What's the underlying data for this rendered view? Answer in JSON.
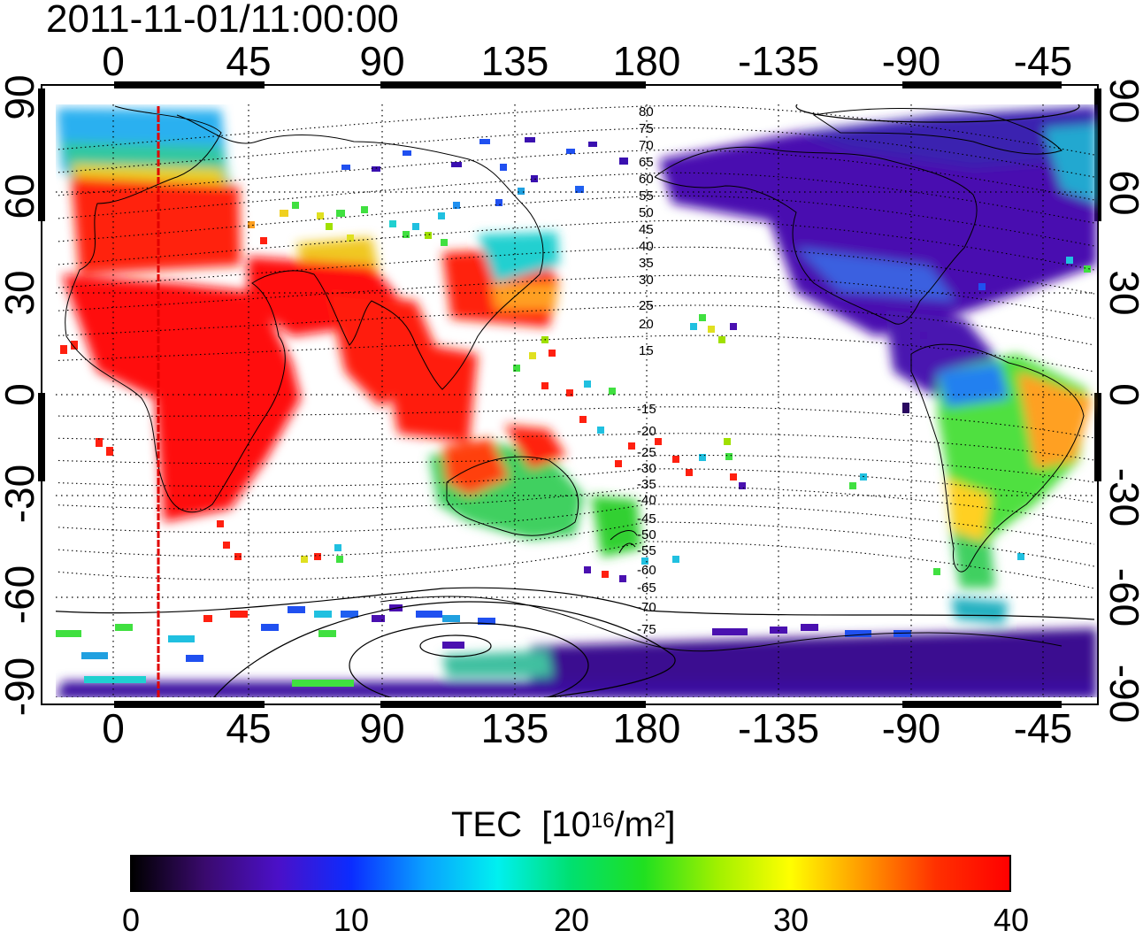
{
  "title": "2011-11-01/11:00:00",
  "axes": {
    "top_ticks": [
      "0",
      "45",
      "90",
      "135",
      "180",
      "-135",
      "-90",
      "-45"
    ],
    "bottom_ticks": [
      "0",
      "45",
      "90",
      "135",
      "180",
      "-135",
      "-90",
      "-45"
    ],
    "left_ticks": [
      "90",
      "60",
      "30",
      "0",
      "-30",
      "-60",
      "-90"
    ],
    "right_ticks": [
      "90",
      "60",
      "30",
      "0",
      "-30",
      "-60",
      "-90"
    ]
  },
  "magnetic_latitude_labels": [
    "80",
    "75",
    "70",
    "65",
    "60",
    "55",
    "50",
    "45",
    "40",
    "35",
    "30",
    "25",
    "20",
    "15",
    "-15",
    "-20",
    "-25",
    "-30",
    "-35",
    "-40",
    "-45",
    "-50",
    "-55",
    "-60",
    "-65",
    "-70",
    "-75"
  ],
  "colorbar": {
    "title": "TEC",
    "unit_base": "10",
    "unit_exponent": "16",
    "unit_mid": "/m",
    "unit_exponent2": "2",
    "ticks": [
      "0",
      "10",
      "20",
      "30",
      "40"
    ],
    "range": [
      0,
      40
    ],
    "colormap": [
      "#000000",
      "#3a0a6e",
      "#4b10c8",
      "#0b2cff",
      "#0aa0ff",
      "#00f0f0",
      "#00e070",
      "#20e020",
      "#a0f000",
      "#ffff00",
      "#ff9900",
      "#ff3000",
      "#ff0000"
    ]
  },
  "marker_line": {
    "longitude": 15,
    "color": "#ff0000"
  },
  "tec_regions": [
    {
      "name": "europe",
      "tec": 39
    },
    {
      "name": "north-atlantic-high-lat",
      "tec": 14
    },
    {
      "name": "africa",
      "tec": 40
    },
    {
      "name": "asia",
      "tec": 40
    },
    {
      "name": "east-asia-japan",
      "tec": 38
    },
    {
      "name": "australia",
      "tec": 27
    },
    {
      "name": "new-zealand",
      "tec": 22
    },
    {
      "name": "north-america",
      "tec": 7
    },
    {
      "name": "south-america",
      "tec": 26
    },
    {
      "name": "antarctica",
      "tec": 6
    }
  ]
}
